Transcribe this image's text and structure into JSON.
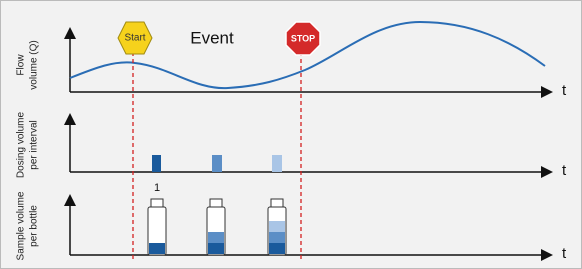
{
  "panels": [
    {
      "label_lines": [
        "Flow",
        "volume (Q)"
      ],
      "time_label": "t"
    },
    {
      "label_lines": [
        "Dosing volume",
        "per interval"
      ],
      "time_label": "t"
    },
    {
      "label_lines": [
        "Sample volume",
        "per bottle"
      ],
      "time_label": "t"
    }
  ],
  "markers": {
    "start": "Start",
    "event": "Event",
    "stop": "STOP"
  },
  "bottle_label": "1"
}
